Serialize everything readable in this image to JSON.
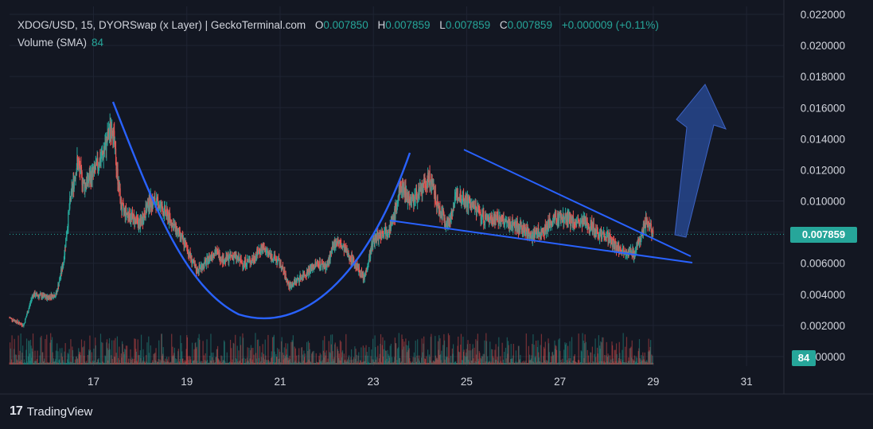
{
  "header": {
    "symbol_line": "XDOG/USD, 15, DYORSwap (x Layer) | GeckoTerminal.com",
    "o_label": "O",
    "o_value": "0.007850",
    "h_label": "H",
    "h_value": "0.007859",
    "l_label": "L",
    "l_value": "0.007859",
    "c_label": "C",
    "c_value": "0.007859",
    "change": "+0.000009 (+0.11%)",
    "volume_label": "Volume (SMA)",
    "volume_value": "84"
  },
  "price_tag": "0.007859",
  "volume_tag": "84",
  "brand": {
    "logo": "17",
    "name": "TradingView"
  },
  "colors": {
    "background": "#131722",
    "up": "#26a69a",
    "down": "#ef5350",
    "pattern_line": "#2962ff",
    "arrow": "#2a4d9c",
    "text": "#d1d4dc"
  },
  "chart_data": {
    "type": "candlestick",
    "title": "XDOG/USD, 15, DYORSwap (x Layer) | GeckoTerminal.com",
    "y_axis": {
      "ticks": [
        "0.022000",
        "0.020000",
        "0.018000",
        "0.016000",
        "0.014000",
        "0.012000",
        "0.010000",
        "0.008000",
        "0.006000",
        "0.004000",
        "0.002000",
        "0.000000"
      ],
      "range": [
        0.0,
        0.022
      ]
    },
    "x_axis": {
      "ticks": [
        "17",
        "19",
        "21",
        "23",
        "25",
        "27",
        "29",
        "31"
      ],
      "range_days": [
        15.2,
        31.8
      ]
    },
    "last_price": 0.007859,
    "price_path": [
      [
        15.2,
        0.0025
      ],
      [
        15.5,
        0.002
      ],
      [
        15.7,
        0.004
      ],
      [
        16.0,
        0.0038
      ],
      [
        16.2,
        0.004
      ],
      [
        16.35,
        0.006
      ],
      [
        16.5,
        0.01
      ],
      [
        16.65,
        0.0125
      ],
      [
        16.8,
        0.011
      ],
      [
        17.0,
        0.0118
      ],
      [
        17.2,
        0.013
      ],
      [
        17.4,
        0.015
      ],
      [
        17.5,
        0.012
      ],
      [
        17.6,
        0.0095
      ],
      [
        17.8,
        0.009
      ],
      [
        18.0,
        0.0085
      ],
      [
        18.2,
        0.01
      ],
      [
        18.4,
        0.0098
      ],
      [
        18.6,
        0.009
      ],
      [
        18.8,
        0.008
      ],
      [
        19.0,
        0.007
      ],
      [
        19.2,
        0.0055
      ],
      [
        19.4,
        0.006
      ],
      [
        19.6,
        0.0068
      ],
      [
        19.8,
        0.0062
      ],
      [
        20.0,
        0.0065
      ],
      [
        20.2,
        0.006
      ],
      [
        20.4,
        0.0062
      ],
      [
        20.6,
        0.007
      ],
      [
        20.8,
        0.0065
      ],
      [
        21.0,
        0.006
      ],
      [
        21.2,
        0.0045
      ],
      [
        21.4,
        0.005
      ],
      [
        21.6,
        0.0055
      ],
      [
        21.8,
        0.006
      ],
      [
        22.0,
        0.0058
      ],
      [
        22.2,
        0.0075
      ],
      [
        22.4,
        0.0068
      ],
      [
        22.6,
        0.006
      ],
      [
        22.8,
        0.005
      ],
      [
        23.0,
        0.0075
      ],
      [
        23.2,
        0.008
      ],
      [
        23.4,
        0.0085
      ],
      [
        23.6,
        0.011
      ],
      [
        23.8,
        0.01
      ],
      [
        24.0,
        0.0105
      ],
      [
        24.2,
        0.0115
      ],
      [
        24.4,
        0.0095
      ],
      [
        24.6,
        0.0085
      ],
      [
        24.8,
        0.0105
      ],
      [
        25.0,
        0.01
      ],
      [
        25.2,
        0.0095
      ],
      [
        25.4,
        0.0088
      ],
      [
        25.6,
        0.009
      ],
      [
        25.8,
        0.0086
      ],
      [
        26.0,
        0.0085
      ],
      [
        26.2,
        0.0082
      ],
      [
        26.4,
        0.0078
      ],
      [
        26.6,
        0.008
      ],
      [
        26.8,
        0.0086
      ],
      [
        27.0,
        0.009
      ],
      [
        27.2,
        0.0088
      ],
      [
        27.4,
        0.0085
      ],
      [
        27.6,
        0.0086
      ],
      [
        27.8,
        0.008
      ],
      [
        28.0,
        0.0078
      ],
      [
        28.2,
        0.007
      ],
      [
        28.4,
        0.0068
      ],
      [
        28.6,
        0.0066
      ],
      [
        28.7,
        0.0075
      ],
      [
        28.85,
        0.0088
      ],
      [
        29.0,
        0.00786
      ]
    ],
    "annotations": [
      {
        "type": "cup_curve",
        "label": ""
      },
      {
        "type": "falling_wedge_upper",
        "label": ""
      },
      {
        "type": "falling_wedge_lower",
        "label": ""
      },
      {
        "type": "breakout_arrow",
        "label": ""
      }
    ]
  }
}
